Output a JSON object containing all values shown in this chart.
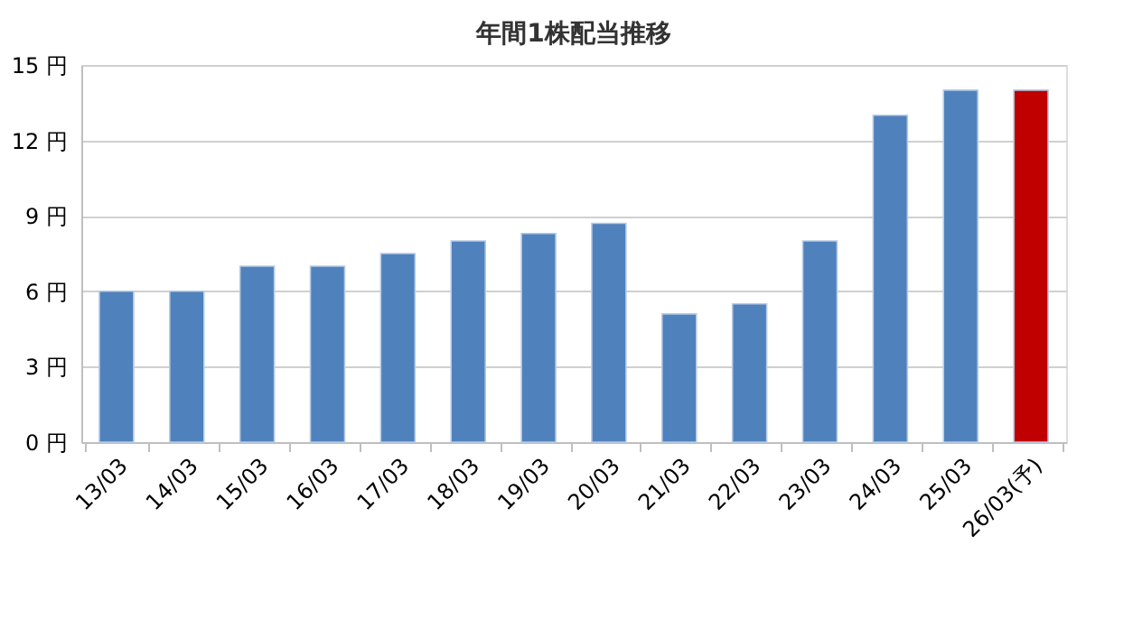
{
  "chart_data": {
    "type": "bar",
    "title": "年間1株配当推移",
    "categories": [
      "13/03",
      "14/03",
      "15/03",
      "16/03",
      "17/03",
      "18/03",
      "19/03",
      "20/03",
      "21/03",
      "22/03",
      "23/03",
      "24/03",
      "25/03",
      "26/03(予)"
    ],
    "values": [
      6,
      6,
      7,
      7,
      7.5,
      8,
      8.3,
      8.7,
      5.1,
      5.5,
      8,
      13,
      14,
      14
    ],
    "colors": [
      "#4f81bd",
      "#4f81bd",
      "#4f81bd",
      "#4f81bd",
      "#4f81bd",
      "#4f81bd",
      "#4f81bd",
      "#4f81bd",
      "#4f81bd",
      "#4f81bd",
      "#4f81bd",
      "#4f81bd",
      "#4f81bd",
      "#c00000"
    ],
    "ylim": [
      0,
      15
    ],
    "yticks": [
      {
        "value": 0,
        "label": "0 円"
      },
      {
        "value": 3,
        "label": "3 円"
      },
      {
        "value": 6,
        "label": "6 円"
      },
      {
        "value": 9,
        "label": "9 円"
      },
      {
        "value": 12,
        "label": "12 円"
      },
      {
        "value": 15,
        "label": "15 円"
      }
    ],
    "grid": "y"
  }
}
